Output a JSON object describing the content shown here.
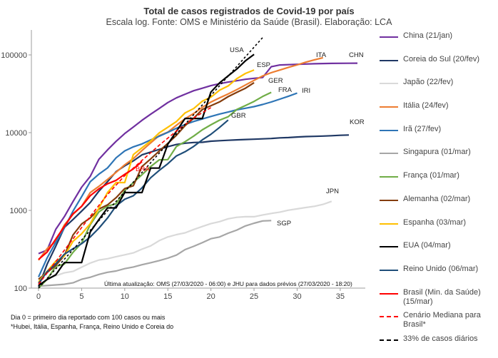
{
  "page": {
    "footnotes": [
      "Dia 0 = primeiro dia reportado com 100 casos ou mais",
      "*Hubei, Itália, Espanha, França, Reino Unido e Coreia do"
    ]
  },
  "chart_data": {
    "type": "line",
    "title": "Total de casos registrados de Covid-19 por país",
    "subtitle": "Escala log. Fonte: OMS e Ministério da Saúde (Brasil). Elaboração: LCA",
    "xlabel": "",
    "ylabel": "",
    "yscale": "log",
    "xlim": [
      -1,
      38
    ],
    "ylim": [
      100,
      170000
    ],
    "x_ticks": [
      0,
      5,
      10,
      15,
      20,
      25,
      30,
      35
    ],
    "y_ticks": [
      100,
      1000,
      10000,
      100000
    ],
    "y_tick_labels": [
      "100",
      "1000",
      "10000",
      "100000"
    ],
    "grid": false,
    "legend_position": "right",
    "annotation": "Última atualização: OMS (27/03/2020 - 06:00) e JHU para dados prévios (27/03/2020 - 18:20)",
    "series": [
      {
        "name": "China (21/jan)",
        "color": "#7030a0",
        "dashed": false,
        "end_label": "CHN",
        "x": [
          0,
          1,
          2,
          3,
          4,
          5,
          6,
          7,
          8,
          9,
          10,
          11,
          12,
          13,
          14,
          15,
          16,
          17,
          18,
          19,
          20,
          21,
          22,
          23,
          24,
          25,
          26,
          27,
          28,
          30,
          32,
          34,
          36,
          37
        ],
        "y": [
          278,
          309,
          571,
          830,
          1297,
          1985,
          2741,
          4537,
          5997,
          7736,
          9720,
          11821,
          14411,
          17238,
          20471,
          24363,
          28060,
          31211,
          34598,
          37251,
          40235,
          42708,
          44730,
          46550,
          48548,
          50054,
          51174,
          70548,
          74185,
          75700,
          76900,
          77800,
          78100,
          78200
        ]
      },
      {
        "name": "Coreia do Sul (20/fev)",
        "color": "#1f3864",
        "dashed": false,
        "end_label": "KOR",
        "x": [
          0,
          1,
          2,
          3,
          4,
          5,
          6,
          7,
          8,
          9,
          10,
          11,
          12,
          13,
          14,
          15,
          16,
          17,
          18,
          19,
          20,
          21,
          22,
          23,
          24,
          25,
          26,
          27,
          28,
          29,
          30,
          31,
          32,
          33,
          34,
          35,
          36
        ],
        "y": [
          104,
          204,
          346,
          602,
          763,
          977,
          1261,
          1766,
          2337,
          3150,
          3736,
          4335,
          5186,
          5621,
          6088,
          6593,
          7041,
          7313,
          7478,
          7513,
          7755,
          7869,
          7979,
          8086,
          8162,
          8236,
          8320,
          8413,
          8565,
          8652,
          8799,
          8897,
          8961,
          9037,
          9137,
          9241,
          9332
        ]
      },
      {
        "name": "Japão (22/fev)",
        "color": "#d9d9d9",
        "dashed": false,
        "end_label": "JPN",
        "x": [
          0,
          1,
          2,
          3,
          4,
          5,
          6,
          7,
          8,
          9,
          10,
          11,
          12,
          13,
          14,
          15,
          16,
          17,
          18,
          19,
          20,
          21,
          22,
          23,
          24,
          25,
          26,
          27,
          28,
          29,
          30,
          31,
          32,
          33,
          34
        ],
        "y": [
          105,
          132,
          144,
          157,
          164,
          186,
          210,
          230,
          239,
          254,
          268,
          284,
          317,
          349,
          408,
          455,
          488,
          514,
          568,
          620,
          675,
          716,
          780,
          814,
          829,
          829,
          873,
          914,
          950,
          1007,
          1046,
          1089,
          1128,
          1193,
          1307
        ]
      },
      {
        "name": "Singapura (01/mar)",
        "color": "#a6a6a6",
        "dashed": false,
        "end_label": "SGP",
        "x": [
          0,
          1,
          2,
          3,
          4,
          5,
          6,
          7,
          8,
          9,
          10,
          11,
          12,
          13,
          14,
          15,
          16,
          17,
          18,
          19,
          20,
          21,
          22,
          23,
          24,
          25,
          26,
          27
        ],
        "y": [
          106,
          108,
          110,
          112,
          117,
          130,
          138,
          150,
          160,
          166,
          178,
          187,
          200,
          212,
          226,
          243,
          266,
          313,
          345,
          385,
          432,
          455,
          509,
          558,
          631,
          683,
          732,
          740
        ]
      },
      {
        "name": "França (01/mar)",
        "color": "#70ad47",
        "dashed": false,
        "end_label": "FRA",
        "x": [
          0,
          1,
          2,
          3,
          4,
          5,
          6,
          7,
          8,
          9,
          10,
          11,
          12,
          13,
          14,
          15,
          16,
          17,
          18,
          19,
          20,
          21,
          22,
          23,
          24,
          25,
          26,
          27
        ],
        "y": [
          100,
          130,
          191,
          204,
          288,
          380,
          656,
          957,
          1134,
          1217,
          1792,
          2284,
          2877,
          3661,
          4469,
          4499,
          6633,
          7652,
          9043,
          10871,
          12612,
          14459,
          16018,
          19856,
          22304,
          25233,
          29155,
          32964
        ]
      },
      {
        "name": "Alemanha (02/mar)",
        "color": "#843c0c",
        "dashed": false,
        "end_label": "GER",
        "x": [
          0,
          1,
          2,
          3,
          4,
          5,
          6,
          7,
          8,
          9,
          10,
          11,
          12,
          13,
          14,
          15,
          16,
          17,
          18,
          19,
          20,
          21,
          22,
          23,
          24,
          25
        ],
        "y": [
          130,
          159,
          196,
          262,
          482,
          670,
          799,
          1040,
          1176,
          1457,
          1908,
          2078,
          3675,
          4585,
          5795,
          7272,
          9257,
          12327,
          15320,
          19848,
          22213,
          24873,
          29056,
          32986,
          37323,
          43938
        ]
      },
      {
        "name": "Espanha (03/mar)",
        "color": "#ffc000",
        "dashed": false,
        "end_label": "ESP",
        "x": [
          0,
          1,
          2,
          3,
          4,
          5,
          6,
          7,
          8,
          9,
          10,
          11,
          12,
          13,
          14,
          15,
          16,
          17,
          18,
          19,
          20,
          21,
          22,
          23,
          24,
          25
        ],
        "y": [
          120,
          165,
          222,
          259,
          400,
          500,
          673,
          1073,
          1695,
          2277,
          2277,
          5232,
          6391,
          7798,
          9942,
          11748,
          13910,
          17963,
          20410,
          25374,
          28603,
          35136,
          39885,
          49515,
          57786,
          64059
        ]
      },
      {
        "name": "EUA (04/mar)",
        "color": "#000000",
        "dashed": false,
        "end_label": "USA",
        "x": [
          0,
          1,
          2,
          3,
          4,
          5,
          6,
          7,
          8,
          9,
          10,
          11,
          12,
          13,
          14,
          15,
          16,
          17,
          18,
          19,
          20,
          21,
          22,
          23,
          24,
          25
        ],
        "y": [
          108,
          129,
          148,
          213,
          213,
          213,
          528,
          762,
          1076,
          1076,
          1695,
          1695,
          1695,
          3499,
          3499,
          7087,
          10442,
          15219,
          15219,
          15219,
          33276,
          43734,
          53740,
          65778,
          83836,
          101657
        ]
      },
      {
        "name": "Reino Unido (06/mar)",
        "color": "#1f4e79",
        "dashed": false,
        "end_label": "GBR",
        "x": [
          0,
          1,
          2,
          3,
          4,
          5,
          6,
          7,
          8,
          9,
          10,
          11,
          12,
          13,
          14,
          15,
          16,
          17,
          18,
          19,
          20,
          21,
          22
        ],
        "y": [
          115,
          163,
          206,
          273,
          321,
          373,
          456,
          590,
          798,
          1140,
          1391,
          1543,
          1950,
          2626,
          3269,
          3983,
          5018,
          5683,
          6650,
          8077,
          9529,
          11658,
          14543
        ]
      },
      {
        "name": "Brasil (Min. da Saúde) (15/mar)",
        "color": "#ff0000",
        "dashed": false,
        "end_label": "BRA",
        "x": [
          0,
          1,
          2,
          3,
          4,
          5,
          6,
          7,
          8,
          9,
          10,
          11,
          12
        ],
        "y": [
          234,
          291,
          428,
          621,
          904,
          1128,
          1546,
          1891,
          2201,
          2433,
          2915,
          3417,
          4250
        ]
      },
      {
        "name": "Cenário Mediana para Brasil*",
        "color": "#ff0000",
        "dashed": true,
        "end_label": "",
        "x": [
          0,
          2,
          4,
          6,
          8,
          10,
          12,
          14,
          16,
          18,
          20
        ],
        "y": [
          112,
          220,
          430,
          840,
          1600,
          2800,
          4400,
          6900,
          10500,
          15500,
          21000
        ]
      },
      {
        "name": "Itália (24/fev)",
        "color": "#ed7d31",
        "dashed": false,
        "end_label": "ITA",
        "x": [
          0,
          1,
          2,
          3,
          4,
          5,
          6,
          7,
          8,
          9,
          10,
          11,
          12,
          13,
          14,
          15,
          16,
          17,
          18,
          19,
          20,
          21,
          22,
          23,
          24,
          25,
          26,
          27,
          28,
          29,
          30,
          31,
          32,
          33
        ],
        "y": [
          229,
          322,
          400,
          650,
          888,
          1128,
          1694,
          2036,
          2502,
          3089,
          3858,
          4636,
          5883,
          7375,
          9172,
          10149,
          12462,
          15113,
          17660,
          21157,
          24747,
          27980,
          31506,
          35713,
          41035,
          47021,
          53578,
          59138,
          63927,
          69176,
          74386,
          80539,
          86498,
          92000
        ]
      },
      {
        "name": "Irã (27/fev)",
        "color": "#2e75b6",
        "dashed": false,
        "end_label": "IRI",
        "x": [
          0,
          1,
          2,
          3,
          4,
          5,
          6,
          7,
          8,
          9,
          10,
          11,
          12,
          13,
          14,
          15,
          16,
          17,
          18,
          19,
          20,
          21,
          22,
          23,
          24,
          25,
          26,
          27,
          28,
          29,
          30
        ],
        "y": [
          139,
          245,
          388,
          593,
          978,
          1501,
          2336,
          2922,
          3513,
          4747,
          5823,
          6566,
          7161,
          8042,
          9000,
          10075,
          11364,
          12729,
          13938,
          14991,
          16169,
          17361,
          18407,
          19644,
          20610,
          21638,
          23049,
          24811,
          27017,
          29406,
          32332
        ]
      },
      {
        "name": "33% de casos diários",
        "color": "#000000",
        "dashed": true,
        "end_label": "",
        "x": [
          0,
          26
        ],
        "y": [
          100,
          167000
        ]
      }
    ]
  }
}
